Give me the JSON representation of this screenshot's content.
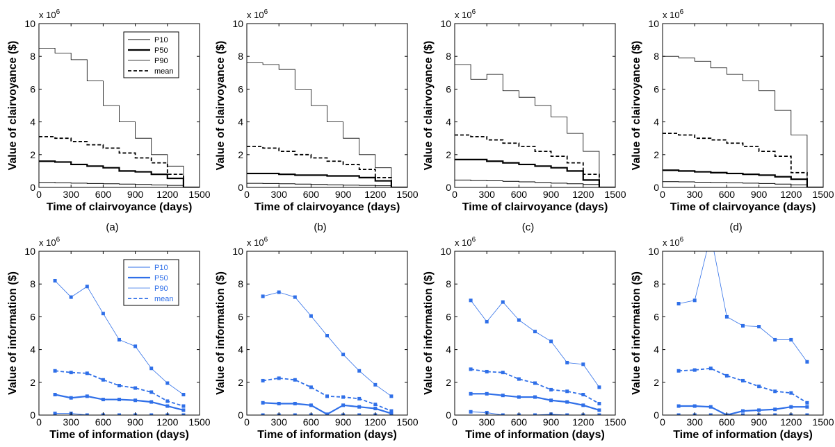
{
  "chart_data": [
    {
      "id": "a_top",
      "type": "line",
      "step": true,
      "color": "#000000",
      "panel_label": "(a)",
      "scale_label": "x 10",
      "scale_exp": "6",
      "xlabel": "Time of clairvoyance (days)",
      "ylabel": "Value of clairvoyance ($)",
      "xlim": [
        0,
        1500
      ],
      "ylim": [
        0,
        10
      ],
      "xticks": [
        "0",
        "300",
        "600",
        "900",
        "1200",
        "1500"
      ],
      "yticks": [
        "0",
        "2",
        "4",
        "6",
        "8",
        "10"
      ],
      "legend": "top-right",
      "x": [
        0,
        150,
        300,
        450,
        600,
        750,
        900,
        1050,
        1200,
        1350,
        1500
      ],
      "series": [
        {
          "name": "P10",
          "style": "thin",
          "values": [
            0.3,
            0.28,
            0.26,
            0.24,
            0.22,
            0.2,
            0.18,
            0.15,
            0.12,
            0.0,
            0.0
          ]
        },
        {
          "name": "P50",
          "style": "thick",
          "values": [
            1.6,
            1.55,
            1.4,
            1.3,
            1.2,
            1.0,
            0.95,
            0.8,
            0.55,
            0.0,
            0.0
          ]
        },
        {
          "name": "P90",
          "style": "thinner",
          "values": [
            8.5,
            8.2,
            7.8,
            6.5,
            5.0,
            4.0,
            3.0,
            2.0,
            1.3,
            0.0,
            0.0
          ]
        },
        {
          "name": "mean",
          "style": "dashed",
          "values": [
            3.1,
            3.0,
            2.8,
            2.6,
            2.4,
            2.1,
            1.8,
            1.5,
            0.8,
            0.0,
            0.0
          ]
        }
      ]
    },
    {
      "id": "b_top",
      "type": "line",
      "step": true,
      "color": "#000000",
      "panel_label": "(b)",
      "scale_label": "x 10",
      "scale_exp": "6",
      "xlabel": "Time of clairvoyance (days)",
      "ylabel": "Value of clairvoyance ($)",
      "xlim": [
        0,
        1500
      ],
      "ylim": [
        0,
        10
      ],
      "xticks": [
        "0",
        "300",
        "600",
        "900",
        "1200",
        "1500"
      ],
      "yticks": [
        "0",
        "2",
        "4",
        "6",
        "8",
        "10"
      ],
      "x": [
        0,
        150,
        300,
        450,
        600,
        750,
        900,
        1050,
        1200,
        1350,
        1500
      ],
      "series": [
        {
          "style": "thin",
          "values": [
            0.25,
            0.24,
            0.22,
            0.2,
            0.18,
            0.16,
            0.14,
            0.12,
            0.1,
            0.0,
            0.0
          ]
        },
        {
          "style": "thick",
          "values": [
            0.85,
            0.85,
            0.8,
            0.75,
            0.75,
            0.7,
            0.7,
            0.6,
            0.4,
            0.0,
            0.0
          ]
        },
        {
          "style": "thinner",
          "values": [
            7.6,
            7.5,
            7.2,
            6.0,
            5.0,
            4.0,
            3.0,
            2.0,
            1.2,
            0.0,
            0.0
          ]
        },
        {
          "style": "dashed",
          "values": [
            2.5,
            2.4,
            2.2,
            2.0,
            1.8,
            1.6,
            1.4,
            1.1,
            0.6,
            0.0,
            0.0
          ]
        }
      ]
    },
    {
      "id": "c_top",
      "type": "line",
      "step": true,
      "color": "#000000",
      "panel_label": "(c)",
      "scale_label": "x 10",
      "scale_exp": "6",
      "xlabel": "Time of clairvoyance (days)",
      "ylabel": "Value of clairvoyance ($)",
      "xlim": [
        0,
        1500
      ],
      "ylim": [
        0,
        10
      ],
      "xticks": [
        "0",
        "300",
        "600",
        "900",
        "1200",
        "1500"
      ],
      "yticks": [
        "0",
        "2",
        "4",
        "6",
        "8",
        "10"
      ],
      "x": [
        0,
        150,
        300,
        450,
        600,
        750,
        900,
        1050,
        1200,
        1350,
        1500
      ],
      "series": [
        {
          "style": "thin",
          "values": [
            0.45,
            0.42,
            0.4,
            0.37,
            0.34,
            0.3,
            0.26,
            0.22,
            0.18,
            0.0,
            0.0
          ]
        },
        {
          "style": "thick",
          "values": [
            1.7,
            1.7,
            1.6,
            1.5,
            1.4,
            1.3,
            1.2,
            1.0,
            0.45,
            0.0,
            0.0
          ]
        },
        {
          "style": "thinner",
          "values": [
            7.5,
            6.6,
            6.9,
            5.9,
            5.5,
            5.0,
            4.3,
            3.3,
            2.2,
            0.0,
            0.0
          ]
        },
        {
          "style": "dashed",
          "values": [
            3.2,
            3.1,
            2.9,
            2.7,
            2.5,
            2.2,
            1.9,
            1.5,
            0.8,
            0.0,
            0.0
          ]
        }
      ]
    },
    {
      "id": "d_top",
      "type": "line",
      "step": true,
      "color": "#000000",
      "panel_label": "(d)",
      "scale_label": "x 10",
      "scale_exp": "6",
      "xlabel": "Time of clairvoyance (days)",
      "ylabel": "Value of clairvoyance ($)",
      "xlim": [
        0,
        1500
      ],
      "ylim": [
        0,
        10
      ],
      "xticks": [
        "0",
        "300",
        "600",
        "900",
        "1200",
        "1500"
      ],
      "yticks": [
        "0",
        "2",
        "4",
        "6",
        "8",
        "10"
      ],
      "x": [
        0,
        150,
        300,
        450,
        600,
        750,
        900,
        1050,
        1200,
        1350,
        1500
      ],
      "series": [
        {
          "style": "thin",
          "values": [
            0.35,
            0.34,
            0.32,
            0.3,
            0.28,
            0.26,
            0.24,
            0.2,
            0.16,
            0.0,
            0.0
          ]
        },
        {
          "style": "thick",
          "values": [
            1.05,
            1.0,
            0.95,
            0.9,
            0.85,
            0.8,
            0.75,
            0.65,
            0.5,
            0.0,
            0.0
          ]
        },
        {
          "style": "thinner",
          "values": [
            8.0,
            7.9,
            7.7,
            7.3,
            6.9,
            6.5,
            5.9,
            4.7,
            3.2,
            0.0,
            0.0
          ]
        },
        {
          "style": "dashed",
          "values": [
            3.3,
            3.2,
            3.0,
            2.9,
            2.7,
            2.5,
            2.2,
            1.9,
            0.9,
            0.0,
            0.0
          ]
        }
      ]
    },
    {
      "id": "a_bot",
      "type": "line",
      "step": false,
      "markers": true,
      "color": "#2f6fe8",
      "scale_label": "x 10",
      "scale_exp": "6",
      "xlabel": "Time of information (days)",
      "ylabel": "Value of information ($)",
      "xlim": [
        0,
        1500
      ],
      "ylim": [
        0,
        10
      ],
      "xticks": [
        "0",
        "300",
        "600",
        "900",
        "1200",
        "1500"
      ],
      "yticks": [
        "0",
        "2",
        "4",
        "6",
        "8",
        "10"
      ],
      "legend": "top-right",
      "x": [
        150,
        300,
        450,
        600,
        750,
        900,
        1050,
        1200,
        1350
      ],
      "series": [
        {
          "name": "P10",
          "style": "thin",
          "values": [
            0.1,
            0.1,
            0.0,
            0.0,
            0.0,
            0.0,
            0.0,
            0.0,
            0.0
          ]
        },
        {
          "name": "P50",
          "style": "thick",
          "values": [
            1.25,
            1.05,
            1.15,
            0.95,
            0.95,
            0.9,
            0.8,
            0.55,
            0.3
          ]
        },
        {
          "name": "P90",
          "style": "thinner",
          "values": [
            8.2,
            7.2,
            7.85,
            6.2,
            4.6,
            4.2,
            2.85,
            1.95,
            1.25
          ]
        },
        {
          "name": "mean",
          "style": "dashed",
          "values": [
            2.7,
            2.6,
            2.55,
            2.15,
            1.8,
            1.65,
            1.4,
            0.85,
            0.55
          ]
        }
      ]
    },
    {
      "id": "b_bot",
      "type": "line",
      "step": false,
      "markers": true,
      "color": "#2f6fe8",
      "scale_label": "x 10",
      "scale_exp": "6",
      "xlabel": "Time of information (days)",
      "ylabel": "Value of information ($)",
      "xlim": [
        0,
        1500
      ],
      "ylim": [
        0,
        10
      ],
      "xticks": [
        "0",
        "300",
        "600",
        "900",
        "1200",
        "1500"
      ],
      "yticks": [
        "0",
        "2",
        "4",
        "6",
        "8",
        "10"
      ],
      "x": [
        150,
        300,
        450,
        600,
        750,
        900,
        1050,
        1200,
        1350
      ],
      "series": [
        {
          "style": "thin",
          "values": [
            0.0,
            0.0,
            0.0,
            0.0,
            0.0,
            0.0,
            0.0,
            0.0,
            0.0
          ]
        },
        {
          "style": "thick",
          "values": [
            0.75,
            0.7,
            0.7,
            0.6,
            0.05,
            0.6,
            0.5,
            0.4,
            0.1
          ]
        },
        {
          "style": "thinner",
          "values": [
            7.25,
            7.5,
            7.2,
            6.05,
            4.85,
            3.7,
            2.7,
            1.85,
            1.15
          ]
        },
        {
          "style": "dashed",
          "values": [
            2.1,
            2.25,
            2.15,
            1.7,
            1.15,
            1.1,
            1.0,
            0.65,
            0.25
          ]
        }
      ]
    },
    {
      "id": "c_bot",
      "type": "line",
      "step": false,
      "markers": true,
      "color": "#2f6fe8",
      "scale_label": "x 10",
      "scale_exp": "6",
      "xlabel": "Time of information (days)",
      "ylabel": "Value of information ($)",
      "xlim": [
        0,
        1500
      ],
      "ylim": [
        0,
        10
      ],
      "xticks": [
        "0",
        "300",
        "600",
        "900",
        "1200",
        "1500"
      ],
      "yticks": [
        "0",
        "2",
        "4",
        "6",
        "8",
        "10"
      ],
      "x": [
        150,
        300,
        450,
        600,
        750,
        900,
        1050,
        1200,
        1350
      ],
      "series": [
        {
          "style": "thin",
          "values": [
            0.2,
            0.15,
            0.0,
            0.0,
            0.0,
            0.05,
            0.0,
            0.0,
            0.0
          ]
        },
        {
          "style": "thick",
          "values": [
            1.3,
            1.3,
            1.2,
            1.1,
            1.1,
            0.9,
            0.8,
            0.6,
            0.3
          ]
        },
        {
          "style": "thinner",
          "values": [
            7.0,
            5.7,
            6.9,
            5.8,
            5.1,
            4.5,
            3.2,
            3.1,
            1.7
          ]
        },
        {
          "style": "dashed",
          "values": [
            2.8,
            2.65,
            2.6,
            2.2,
            1.95,
            1.55,
            1.45,
            1.25,
            0.7
          ]
        }
      ]
    },
    {
      "id": "d_bot",
      "type": "line",
      "step": false,
      "markers": true,
      "color": "#2f6fe8",
      "scale_label": "x 10",
      "scale_exp": "6",
      "xlabel": "Time of information (days)",
      "ylabel": "Value of information ($)",
      "xlim": [
        0,
        1500
      ],
      "ylim": [
        0,
        10
      ],
      "xticks": [
        "0",
        "300",
        "600",
        "900",
        "1200",
        "1500"
      ],
      "yticks": [
        "0",
        "2",
        "4",
        "6",
        "8",
        "10"
      ],
      "x": [
        150,
        300,
        450,
        600,
        750,
        900,
        1050,
        1200,
        1350
      ],
      "series": [
        {
          "style": "thin",
          "values": [
            0.0,
            0.0,
            0.0,
            0.0,
            0.0,
            0.0,
            0.0,
            0.0,
            0.0
          ]
        },
        {
          "style": "thick",
          "values": [
            0.55,
            0.55,
            0.5,
            0.0,
            0.25,
            0.3,
            0.35,
            0.5,
            0.5
          ]
        },
        {
          "style": "thinner",
          "values": [
            6.8,
            7.0,
            11.0,
            6.0,
            5.45,
            5.4,
            4.6,
            4.6,
            3.25
          ]
        },
        {
          "style": "dashed",
          "values": [
            2.7,
            2.75,
            2.85,
            2.4,
            2.1,
            1.75,
            1.45,
            1.35,
            0.75
          ]
        }
      ]
    }
  ]
}
